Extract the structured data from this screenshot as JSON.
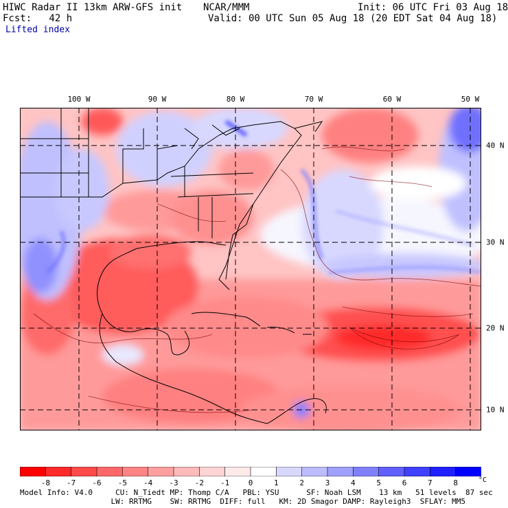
{
  "header": {
    "title_left": "HIWC Radar II 13km ARW-GFS init",
    "org": "NCAR/MMM",
    "init": "Init: 06 UTC Fri 03 Aug 18",
    "fcst": "Fcst:   42 h",
    "valid": "Valid: 00 UTC Sun 05 Aug 18 (20 EDT Sat 04 Aug 18)",
    "field": "Lifted index"
  },
  "axes": {
    "longitudes": [
      "100 W",
      "90 W",
      "80 W",
      "70 W",
      "60 W",
      "50 W"
    ],
    "latitudes": [
      "40 N",
      "30 N",
      "20 N",
      "10 N"
    ]
  },
  "colorbar": {
    "ticks": [
      "-8",
      "-7",
      "-6",
      "-5",
      "-4",
      "-3",
      "-2",
      "-1",
      "0",
      "1",
      "2",
      "3",
      "4",
      "5",
      "6",
      "7",
      "8"
    ],
    "unit": "°C",
    "colors": [
      "#ff0000",
      "#ff2a2a",
      "#ff4a4a",
      "#ff6868",
      "#ff8585",
      "#ffa0a0",
      "#ffbaba",
      "#ffd4d4",
      "#ffeaea",
      "#ffffff",
      "#d8d8ff",
      "#bcbcff",
      "#a0a0ff",
      "#8080ff",
      "#6060ff",
      "#4040ff",
      "#2020ff",
      "#0000ff"
    ]
  },
  "footer": {
    "line1": "Model Info: V4.0     CU: N_Tiedt MP: Thomp C/A   PBL: YSU      SF: Noah LSM    13 km   51 levels  87 sec",
    "line2": "                    LW: RRTMG    SW: RRTMG  DIFF: full   KM: 2D Smagor DAMP: Rayleigh3  SFLAY: MM5"
  }
}
